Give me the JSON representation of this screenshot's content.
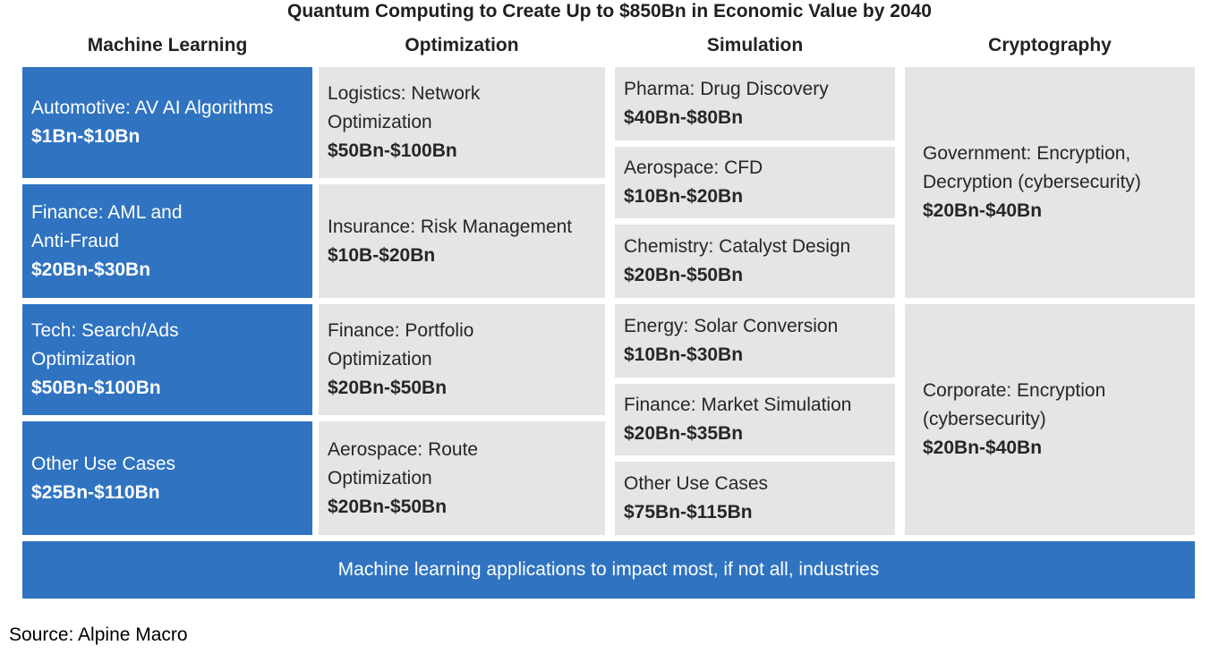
{
  "title": "Quantum Computing to Create Up to $850Bn in Economic Value by 2040",
  "columns": [
    {
      "header": "Machine Learning"
    },
    {
      "header": "Optimization"
    },
    {
      "header": "Simulation"
    },
    {
      "header": "Cryptography"
    }
  ],
  "machine_learning": [
    {
      "label": "Automotive: AV AI Algorithms",
      "value": "$1Bn-$10Bn"
    },
    {
      "label": "Finance: AML and\nAnti-Fraud",
      "value": "$20Bn-$30Bn"
    },
    {
      "label": "Tech: Search/Ads\nOptimization",
      "value": "$50Bn-$100Bn"
    },
    {
      "label": "Other Use Cases",
      "value": "$25Bn-$110Bn"
    }
  ],
  "optimization": [
    {
      "label": "Logistics: Network\nOptimization",
      "value": "$50Bn-$100Bn"
    },
    {
      "label": "Insurance: Risk Management",
      "value": "$10B-$20Bn"
    },
    {
      "label": "Finance: Portfolio\nOptimization",
      "value": "$20Bn-$50Bn"
    },
    {
      "label": "Aerospace: Route\nOptimization",
      "value": "$20Bn-$50Bn"
    }
  ],
  "simulation": [
    {
      "label": "Pharma: Drug Discovery",
      "value": "$40Bn-$80Bn"
    },
    {
      "label": "Aerospace: CFD",
      "value": "$10Bn-$20Bn"
    },
    {
      "label": "Chemistry: Catalyst Design",
      "value": "$20Bn-$50Bn"
    },
    {
      "label": "Energy: Solar Conversion",
      "value": "$10Bn-$30Bn"
    },
    {
      "label": "Finance: Market Simulation",
      "value": "$20Bn-$35Bn"
    },
    {
      "label": "Other Use Cases",
      "value": "$75Bn-$115Bn"
    }
  ],
  "cryptography": [
    {
      "label": "Government: Encryption,\nDecryption (cybersecurity)",
      "value": "$20Bn-$40Bn"
    },
    {
      "label": "Corporate: Encryption\n(cybersecurity)",
      "value": "$20Bn-$40Bn"
    }
  ],
  "banner": "Machine learning applications to impact most, if not all, industries",
  "source": "Source: Alpine Macro",
  "colors": {
    "accent_blue": "#2f73c1",
    "cell_gray": "#e5e5e5"
  }
}
